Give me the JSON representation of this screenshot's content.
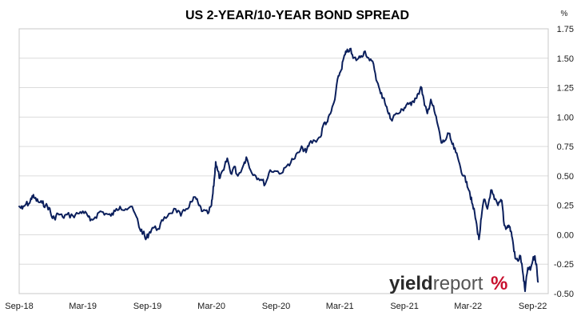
{
  "chart_data": {
    "type": "line",
    "title": "US 2-YEAR/10-YEAR BOND SPREAD",
    "ylabel": "",
    "xlabel": "",
    "unit": "%",
    "ylim": [
      -0.5,
      1.75
    ],
    "yticks": [
      "1.75",
      "1.50",
      "1.25",
      "1.00",
      "0.75",
      "0.50",
      "0.25",
      "0.00",
      "-0.25",
      "-0.50"
    ],
    "y_tick_values": [
      1.75,
      1.5,
      1.25,
      1.0,
      0.75,
      0.5,
      0.25,
      0.0,
      -0.25,
      -0.5
    ],
    "xticks": [
      "Sep-18",
      "Mar-19",
      "Sep-19",
      "Mar-20",
      "Sep-20",
      "Mar-21",
      "Sep-21",
      "Mar-22",
      "Sep-22"
    ],
    "xlim": [
      "2018-09-01",
      "2022-10-15"
    ],
    "grid": "horizontal",
    "legend": "none",
    "series": [
      {
        "color": "#0b1f5c",
        "points": [
          [
            "2018-09-01",
            0.24
          ],
          [
            "2018-09-10",
            0.22
          ],
          [
            "2018-09-20",
            0.26
          ],
          [
            "2018-10-01",
            0.27
          ],
          [
            "2018-10-08",
            0.33
          ],
          [
            "2018-10-15",
            0.31
          ],
          [
            "2018-10-25",
            0.28
          ],
          [
            "2018-11-05",
            0.27
          ],
          [
            "2018-11-15",
            0.25
          ],
          [
            "2018-11-25",
            0.23
          ],
          [
            "2018-12-03",
            0.15
          ],
          [
            "2018-12-10",
            0.14
          ],
          [
            "2018-12-20",
            0.18
          ],
          [
            "2019-01-03",
            0.15
          ],
          [
            "2019-01-15",
            0.17
          ],
          [
            "2019-02-01",
            0.16
          ],
          [
            "2019-02-15",
            0.18
          ],
          [
            "2019-03-01",
            0.2
          ],
          [
            "2019-03-15",
            0.16
          ],
          [
            "2019-03-22",
            0.12
          ],
          [
            "2019-04-05",
            0.15
          ],
          [
            "2019-04-20",
            0.2
          ],
          [
            "2019-05-05",
            0.18
          ],
          [
            "2019-05-20",
            0.16
          ],
          [
            "2019-06-01",
            0.2
          ],
          [
            "2019-06-15",
            0.24
          ],
          [
            "2019-07-01",
            0.22
          ],
          [
            "2019-07-15",
            0.24
          ],
          [
            "2019-08-01",
            0.15
          ],
          [
            "2019-08-10",
            0.05
          ],
          [
            "2019-08-20",
            0.02
          ],
          [
            "2019-08-27",
            -0.04
          ],
          [
            "2019-09-05",
            0.01
          ],
          [
            "2019-09-15",
            0.06
          ],
          [
            "2019-10-01",
            0.05
          ],
          [
            "2019-10-15",
            0.12
          ],
          [
            "2019-11-01",
            0.18
          ],
          [
            "2019-11-20",
            0.22
          ],
          [
            "2019-12-05",
            0.16
          ],
          [
            "2019-12-20",
            0.22
          ],
          [
            "2020-01-05",
            0.28
          ],
          [
            "2020-01-15",
            0.32
          ],
          [
            "2020-01-25",
            0.25
          ],
          [
            "2020-02-05",
            0.2
          ],
          [
            "2020-02-20",
            0.18
          ],
          [
            "2020-03-01",
            0.25
          ],
          [
            "2020-03-05",
            0.35
          ],
          [
            "2020-03-10",
            0.5
          ],
          [
            "2020-03-13",
            0.62
          ],
          [
            "2020-03-18",
            0.55
          ],
          [
            "2020-03-25",
            0.48
          ],
          [
            "2020-04-05",
            0.55
          ],
          [
            "2020-04-15",
            0.65
          ],
          [
            "2020-04-25",
            0.52
          ],
          [
            "2020-05-05",
            0.58
          ],
          [
            "2020-05-15",
            0.5
          ],
          [
            "2020-06-01",
            0.6
          ],
          [
            "2020-06-08",
            0.66
          ],
          [
            "2020-06-20",
            0.55
          ],
          [
            "2020-07-05",
            0.5
          ],
          [
            "2020-07-20",
            0.47
          ],
          [
            "2020-08-01",
            0.43
          ],
          [
            "2020-08-15",
            0.55
          ],
          [
            "2020-09-01",
            0.54
          ],
          [
            "2020-09-20",
            0.53
          ],
          [
            "2020-10-05",
            0.6
          ],
          [
            "2020-10-20",
            0.64
          ],
          [
            "2020-11-05",
            0.7
          ],
          [
            "2020-11-15",
            0.74
          ],
          [
            "2020-11-25",
            0.7
          ],
          [
            "2020-12-05",
            0.78
          ],
          [
            "2020-12-20",
            0.8
          ],
          [
            "2021-01-05",
            0.83
          ],
          [
            "2021-01-15",
            0.95
          ],
          [
            "2021-01-25",
            0.96
          ],
          [
            "2021-02-05",
            1.05
          ],
          [
            "2021-02-15",
            1.15
          ],
          [
            "2021-02-25",
            1.35
          ],
          [
            "2021-03-05",
            1.4
          ],
          [
            "2021-03-12",
            1.5
          ],
          [
            "2021-03-20",
            1.55
          ],
          [
            "2021-03-30",
            1.58
          ],
          [
            "2021-04-08",
            1.5
          ],
          [
            "2021-04-20",
            1.49
          ],
          [
            "2021-05-01",
            1.52
          ],
          [
            "2021-05-12",
            1.56
          ],
          [
            "2021-05-25",
            1.48
          ],
          [
            "2021-06-05",
            1.45
          ],
          [
            "2021-06-15",
            1.3
          ],
          [
            "2021-06-25",
            1.2
          ],
          [
            "2021-07-05",
            1.16
          ],
          [
            "2021-07-15",
            1.05
          ],
          [
            "2021-07-25",
            0.98
          ],
          [
            "2021-08-05",
            1.02
          ],
          [
            "2021-08-20",
            1.04
          ],
          [
            "2021-09-01",
            1.08
          ],
          [
            "2021-09-10",
            1.12
          ],
          [
            "2021-09-20",
            1.1
          ],
          [
            "2021-10-01",
            1.16
          ],
          [
            "2021-10-10",
            1.2
          ],
          [
            "2021-10-20",
            1.25
          ],
          [
            "2021-10-28",
            1.1
          ],
          [
            "2021-11-05",
            1.03
          ],
          [
            "2021-11-15",
            1.15
          ],
          [
            "2021-11-25",
            1.05
          ],
          [
            "2021-12-05",
            0.93
          ],
          [
            "2021-12-15",
            0.78
          ],
          [
            "2021-12-25",
            0.8
          ],
          [
            "2022-01-05",
            0.86
          ],
          [
            "2022-01-15",
            0.77
          ],
          [
            "2022-01-25",
            0.7
          ],
          [
            "2022-02-05",
            0.6
          ],
          [
            "2022-02-15",
            0.5
          ],
          [
            "2022-02-25",
            0.45
          ],
          [
            "2022-03-05",
            0.37
          ],
          [
            "2022-03-12",
            0.27
          ],
          [
            "2022-03-20",
            0.18
          ],
          [
            "2022-03-27",
            0.05
          ],
          [
            "2022-04-01",
            -0.04
          ],
          [
            "2022-04-08",
            0.15
          ],
          [
            "2022-04-15",
            0.3
          ],
          [
            "2022-04-25",
            0.22
          ],
          [
            "2022-05-05",
            0.38
          ],
          [
            "2022-05-15",
            0.3
          ],
          [
            "2022-05-25",
            0.25
          ],
          [
            "2022-06-05",
            0.29
          ],
          [
            "2022-06-12",
            0.08
          ],
          [
            "2022-06-18",
            0.06
          ],
          [
            "2022-06-25",
            0.08
          ],
          [
            "2022-07-01",
            0.03
          ],
          [
            "2022-07-06",
            -0.05
          ],
          [
            "2022-07-13",
            -0.2
          ],
          [
            "2022-07-20",
            -0.22
          ],
          [
            "2022-07-28",
            -0.18
          ],
          [
            "2022-08-05",
            -0.35
          ],
          [
            "2022-08-10",
            -0.48
          ],
          [
            "2022-08-18",
            -0.28
          ],
          [
            "2022-08-25",
            -0.3
          ],
          [
            "2022-09-01",
            -0.22
          ],
          [
            "2022-09-07",
            -0.18
          ],
          [
            "2022-09-13",
            -0.3
          ],
          [
            "2022-09-16",
            -0.4
          ]
        ]
      }
    ]
  },
  "logo": {
    "word_bold": "yield",
    "word_light": "report",
    "symbol": "%",
    "color_dark": "#2a2a2a",
    "color_light": "#555555",
    "color_green": "#2e8b3a",
    "color_red": "#c8102e"
  }
}
